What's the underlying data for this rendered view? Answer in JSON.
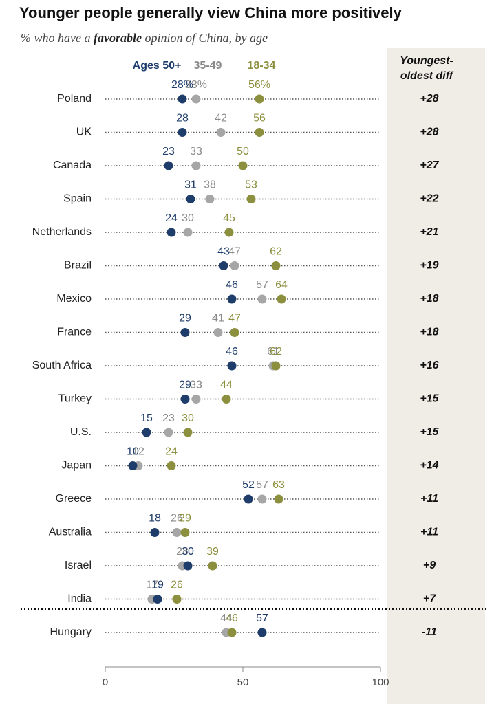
{
  "chart_data": {
    "type": "dot",
    "title": "Younger people generally view China more positively",
    "subtitle": [
      "% who have a ",
      "favorable",
      " opinion of China, by age"
    ],
    "diff_header": [
      "Youngest-",
      "oldest diff"
    ],
    "categories": [
      "Poland",
      "UK",
      "Canada",
      "Spain",
      "Netherlands",
      "Brazil",
      "Mexico",
      "France",
      "South Africa",
      "Turkey",
      "U.S.",
      "Japan",
      "Greece",
      "Australia",
      "Israel",
      "India",
      "Hungary"
    ],
    "series": [
      {
        "name": "35-49",
        "color": "#a6a6a6",
        "label_color": "#8a8a8a",
        "values": [
          33,
          42,
          33,
          38,
          30,
          47,
          57,
          41,
          61,
          33,
          23,
          12,
          57,
          26,
          28,
          17,
          44
        ],
        "value_labels": [
          "33%",
          "42",
          "33",
          "38",
          "30",
          "47",
          "57",
          "41",
          "61",
          "33",
          "23",
          "12",
          "57",
          "26",
          "28",
          "17",
          "44"
        ]
      },
      {
        "name": "18-34",
        "color": "#8c8f3e",
        "label_color": "#8c8f3e",
        "values": [
          56,
          56,
          50,
          53,
          45,
          62,
          64,
          47,
          62,
          44,
          30,
          24,
          63,
          29,
          39,
          26,
          46
        ],
        "value_labels": [
          "56%",
          "56",
          "50",
          "53",
          "45",
          "62",
          "64",
          "47",
          "62",
          "44",
          "30",
          "24",
          "63",
          "29",
          "39",
          "26",
          "46"
        ]
      },
      {
        "name": "Ages 50+",
        "color": "#1f3d6b",
        "label_color": "#1f3d6b",
        "values": [
          28,
          28,
          23,
          31,
          24,
          43,
          46,
          29,
          46,
          29,
          15,
          10,
          52,
          18,
          30,
          19,
          57
        ],
        "value_labels": [
          "28%",
          "28",
          "23",
          "31",
          "24",
          "43",
          "46",
          "29",
          "46",
          "29",
          "15",
          "10",
          "52",
          "18",
          "30",
          "19",
          "57"
        ]
      }
    ],
    "diff": [
      {
        "value": 28,
        "label": "+28"
      },
      {
        "value": 28,
        "label": "+28"
      },
      {
        "value": 27,
        "label": "+27"
      },
      {
        "value": 22,
        "label": "+22"
      },
      {
        "value": 21,
        "label": "+21"
      },
      {
        "value": 19,
        "label": "+19"
      },
      {
        "value": 18,
        "label": "+18"
      },
      {
        "value": 18,
        "label": "+18"
      },
      {
        "value": 16,
        "label": "+16"
      },
      {
        "value": 15,
        "label": "+15"
      },
      {
        "value": 15,
        "label": "+15"
      },
      {
        "value": 14,
        "label": "+14"
      },
      {
        "value": 11,
        "label": "+11"
      },
      {
        "value": 11,
        "label": "+11"
      },
      {
        "value": 9,
        "label": "+9"
      },
      {
        "value": 7,
        "label": "+7"
      },
      -11
    ],
    "xlim": [
      0,
      100
    ],
    "xticks": [
      0,
      50,
      100
    ]
  }
}
